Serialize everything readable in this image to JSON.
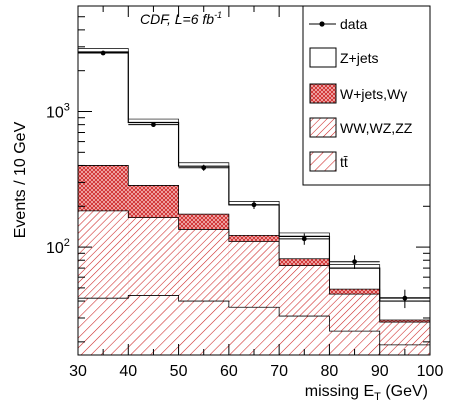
{
  "chart_data": {
    "type": "bar",
    "annotation": "CDF, L=6 fb",
    "annotation_sup": "-1",
    "ylabel": "Events / 10 GeV",
    "xlabel": "missing E",
    "xlabel_sub": "T",
    "xlabel_unit": " (GeV)",
    "xlim": [
      30,
      100
    ],
    "ylim": [
      16,
      6000
    ],
    "yscale": "log",
    "x_ticks": [
      30,
      40,
      50,
      60,
      70,
      80,
      90,
      100
    ],
    "y_tick_labels": [
      {
        "value": 100,
        "base": "10",
        "exp": "2"
      },
      {
        "value": 1000,
        "base": "10",
        "exp": "3"
      }
    ],
    "bin_edges": [
      30,
      40,
      50,
      60,
      70,
      80,
      90,
      100
    ],
    "stack": [
      {
        "name": "tt̄",
        "values": [
          42,
          44,
          40,
          36,
          31,
          24,
          19
        ]
      },
      {
        "name": "WW,WZ,ZZ",
        "values": [
          185,
          165,
          135,
          110,
          73,
          45,
          28
        ]
      },
      {
        "name": "W+jets,Wγ",
        "values": [
          400,
          285,
          175,
          122,
          82,
          49,
          29
        ]
      },
      {
        "name": "Z+jets",
        "values": [
          2750,
          830,
          395,
          205,
          120,
          70,
          40
        ]
      }
    ],
    "data": {
      "name": "data",
      "x": [
        35,
        45,
        55,
        65,
        75,
        85,
        95
      ],
      "y": [
        2700,
        800,
        385,
        205,
        115,
        78,
        42
      ],
      "yerr": [
        52,
        28,
        20,
        14,
        11,
        9,
        6.5
      ]
    },
    "legend": {
      "position": "top-right",
      "entries": [
        {
          "label": "data",
          "style": "marker"
        },
        {
          "label": "Z+jets",
          "style": "white"
        },
        {
          "label": "W+jets,Wγ",
          "style": "cross-hatch"
        },
        {
          "label": "WW,WZ,ZZ",
          "style": "dense-hatch"
        },
        {
          "label": "tt̄",
          "style": "sparse-hatch"
        }
      ]
    },
    "colors": {
      "hatch": "#cc2222",
      "fill": "#f5b8b8",
      "line": "#000000"
    }
  }
}
